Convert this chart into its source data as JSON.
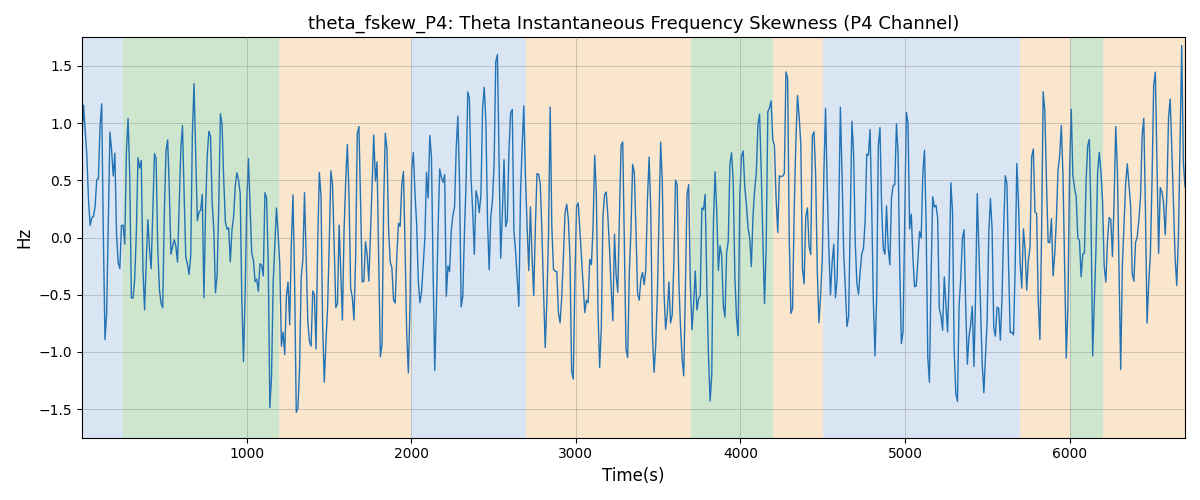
{
  "title": "theta_fskew_P4: Theta Instantaneous Frequency Skewness (P4 Channel)",
  "xlabel": "Time(s)",
  "ylabel": "Hz",
  "xlim": [
    0,
    6700
  ],
  "ylim": [
    -1.75,
    1.75
  ],
  "yticks": [
    -1.5,
    -1.0,
    -0.5,
    0.0,
    0.5,
    1.0,
    1.5
  ],
  "xticks": [
    1000,
    2000,
    3000,
    4000,
    5000,
    6000
  ],
  "line_color": "#2272b4",
  "line_width": 1.0,
  "bg_regions": [
    {
      "xstart": 0,
      "xend": 250,
      "color": "#aec6e8",
      "alpha": 0.45
    },
    {
      "xstart": 250,
      "xend": 1200,
      "color": "#90c990",
      "alpha": 0.45
    },
    {
      "xstart": 1200,
      "xend": 2000,
      "color": "#f5c990",
      "alpha": 0.45
    },
    {
      "xstart": 2000,
      "xend": 2700,
      "color": "#aec6e8",
      "alpha": 0.45
    },
    {
      "xstart": 2700,
      "xend": 3700,
      "color": "#f5c990",
      "alpha": 0.45
    },
    {
      "xstart": 3700,
      "xend": 4200,
      "color": "#90c990",
      "alpha": 0.45
    },
    {
      "xstart": 4200,
      "xend": 4500,
      "color": "#f5c990",
      "alpha": 0.45
    },
    {
      "xstart": 4500,
      "xend": 5700,
      "color": "#aec6e8",
      "alpha": 0.45
    },
    {
      "xstart": 5700,
      "xend": 6000,
      "color": "#f5c990",
      "alpha": 0.45
    },
    {
      "xstart": 6000,
      "xend": 6200,
      "color": "#90c990",
      "alpha": 0.45
    },
    {
      "xstart": 6200,
      "xend": 6700,
      "color": "#f5c990",
      "alpha": 0.45
    }
  ],
  "seed": 42,
  "n_points": 670,
  "figsize": [
    12.0,
    5.0
  ],
  "dpi": 100
}
